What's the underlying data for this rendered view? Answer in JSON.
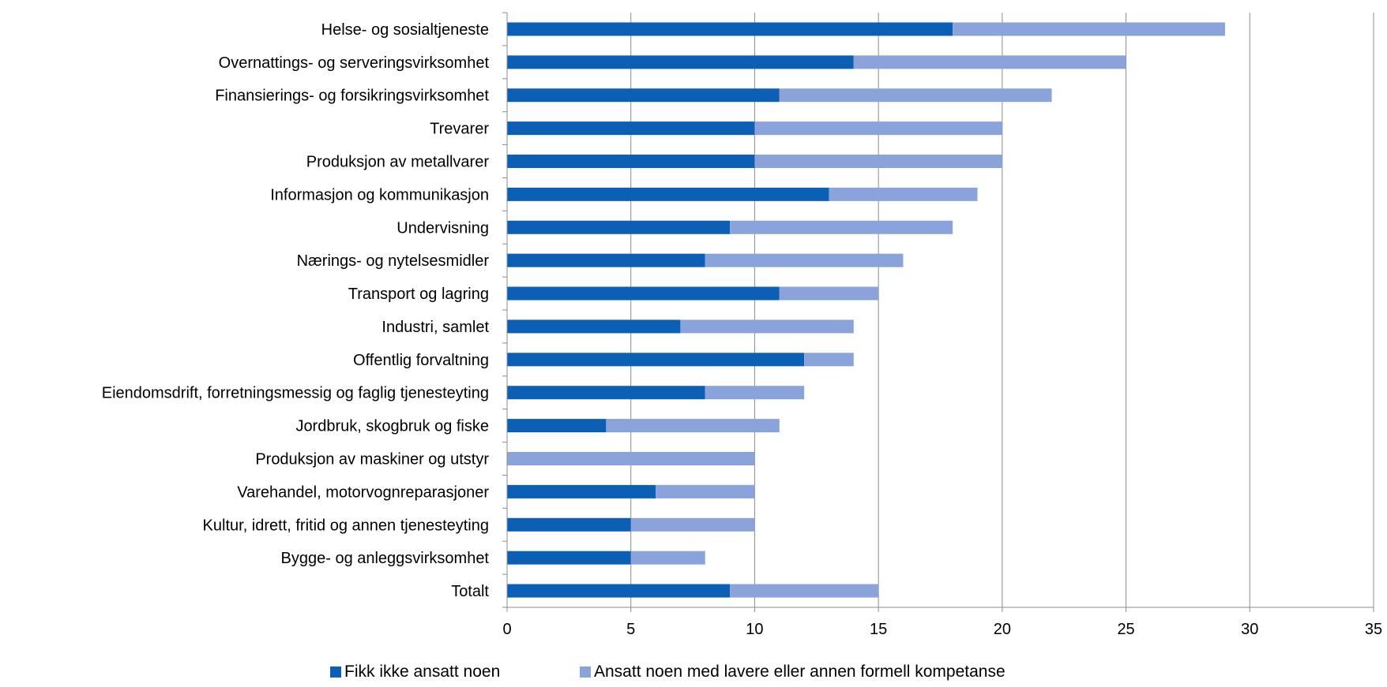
{
  "chart_data": {
    "type": "bar",
    "orientation": "horizontal",
    "stacked": true,
    "categories": [
      "Helse- og sosialtjeneste",
      "Overnattings- og serveringsvirksomhet",
      "Finansierings- og forsikringsvirksomhet",
      "Trevarer",
      "Produksjon av metallvarer",
      "Informasjon og kommunikasjon",
      "Undervisning",
      "Nærings- og nytelsesmidler",
      "Transport og lagring",
      "Industri, samlet",
      "Offentlig forvaltning",
      "Eiendomsdrift, forretningsmessig og faglig tjenesteyting",
      "Jordbruk, skogbruk og fiske",
      "Produksjon av maskiner og utstyr",
      "Varehandel, motorvognreparasjoner",
      "Kultur, idrett, fritid og annen tjenesteyting",
      "Bygge- og anleggsvirksomhet",
      "Totalt"
    ],
    "series": [
      {
        "name": "Fikk ikke ansatt noen",
        "color": "#0b5fb4",
        "values": [
          18,
          14,
          11,
          10,
          10,
          13,
          9,
          8,
          11,
          7,
          12,
          8,
          4,
          0,
          6,
          5,
          5,
          9
        ]
      },
      {
        "name": "Ansatt noen med lavere eller annen formell kompetanse",
        "color": "#8ba3db",
        "values": [
          11,
          11,
          11,
          10,
          10,
          6,
          9,
          8,
          4,
          7,
          2,
          4,
          7,
          10,
          4,
          5,
          3,
          6
        ]
      }
    ],
    "xlim": [
      0,
      35
    ],
    "xticks": [
      "0",
      "5",
      "10",
      "15",
      "20",
      "25",
      "30",
      "35"
    ],
    "grid": "vertical",
    "legend_position": "bottom",
    "title": "",
    "xlabel": "",
    "ylabel": ""
  }
}
